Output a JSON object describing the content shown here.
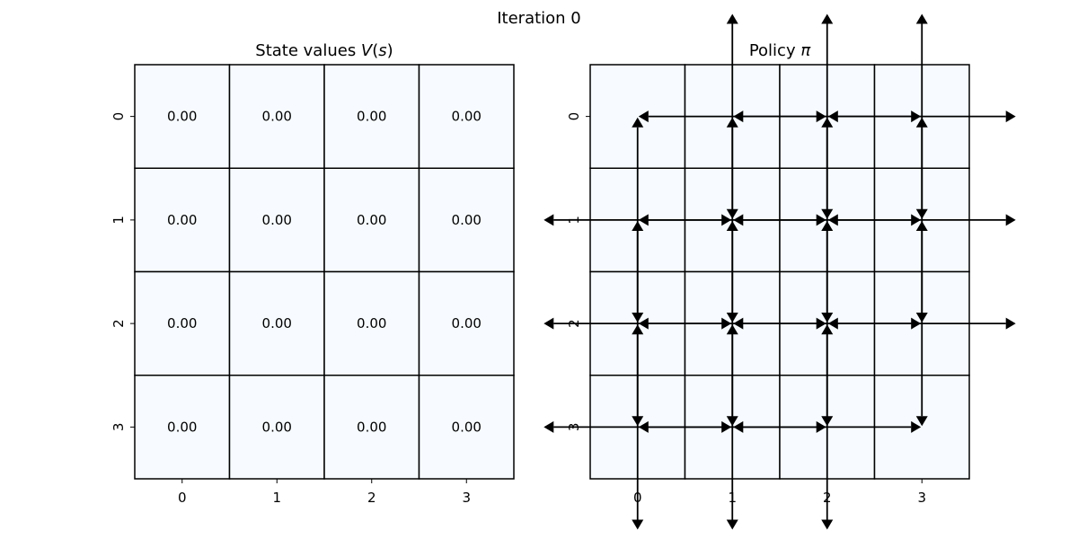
{
  "suptitle": "Iteration 0",
  "chart_data": [
    {
      "type": "heatmap",
      "title": "State values V(s)",
      "title_prefix": "State values ",
      "title_var": "V",
      "title_arg": "s",
      "x_ticks": [
        "0",
        "1",
        "2",
        "3"
      ],
      "y_ticks": [
        "0",
        "1",
        "2",
        "3"
      ],
      "values": [
        [
          0.0,
          0.0,
          0.0,
          0.0
        ],
        [
          0.0,
          0.0,
          0.0,
          0.0
        ],
        [
          0.0,
          0.0,
          0.0,
          0.0
        ],
        [
          0.0,
          0.0,
          0.0,
          0.0
        ]
      ],
      "annotations": [
        [
          "0.00",
          "0.00",
          "0.00",
          "0.00"
        ],
        [
          "0.00",
          "0.00",
          "0.00",
          "0.00"
        ],
        [
          "0.00",
          "0.00",
          "0.00",
          "0.00"
        ],
        [
          "0.00",
          "0.00",
          "0.00",
          "0.00"
        ]
      ],
      "cell_color": "#f7fbff",
      "grid_color": "#000000"
    },
    {
      "type": "heatmap",
      "title": "Policy π",
      "title_prefix": "Policy ",
      "title_var": "π",
      "x_ticks": [
        "0",
        "1",
        "2",
        "3"
      ],
      "y_ticks": [
        "0",
        "1",
        "2",
        "3"
      ],
      "values": [
        [
          0.0,
          0.0,
          0.0,
          0.0
        ],
        [
          0.0,
          0.0,
          0.0,
          0.0
        ],
        [
          0.0,
          0.0,
          0.0,
          0.0
        ],
        [
          0.0,
          0.0,
          0.0,
          0.0
        ]
      ],
      "policy": [
        [
          [],
          [
            "up",
            "down",
            "left",
            "right"
          ],
          [
            "up",
            "down",
            "left",
            "right"
          ],
          [
            "up",
            "down",
            "left",
            "right"
          ]
        ],
        [
          [
            "up",
            "down",
            "left",
            "right"
          ],
          [
            "up",
            "down",
            "left",
            "right"
          ],
          [
            "up",
            "down",
            "left",
            "right"
          ],
          [
            "up",
            "down",
            "left",
            "right"
          ]
        ],
        [
          [
            "up",
            "down",
            "left",
            "right"
          ],
          [
            "up",
            "down",
            "left",
            "right"
          ],
          [
            "up",
            "down",
            "left",
            "right"
          ],
          [
            "up",
            "down",
            "left",
            "right"
          ]
        ],
        [
          [
            "up",
            "down",
            "left",
            "right"
          ],
          [
            "up",
            "down",
            "left",
            "right"
          ],
          [
            "up",
            "down",
            "left",
            "right"
          ],
          []
        ]
      ],
      "cell_color": "#f7fbff",
      "grid_color": "#000000",
      "arrow_color": "#000000"
    }
  ]
}
